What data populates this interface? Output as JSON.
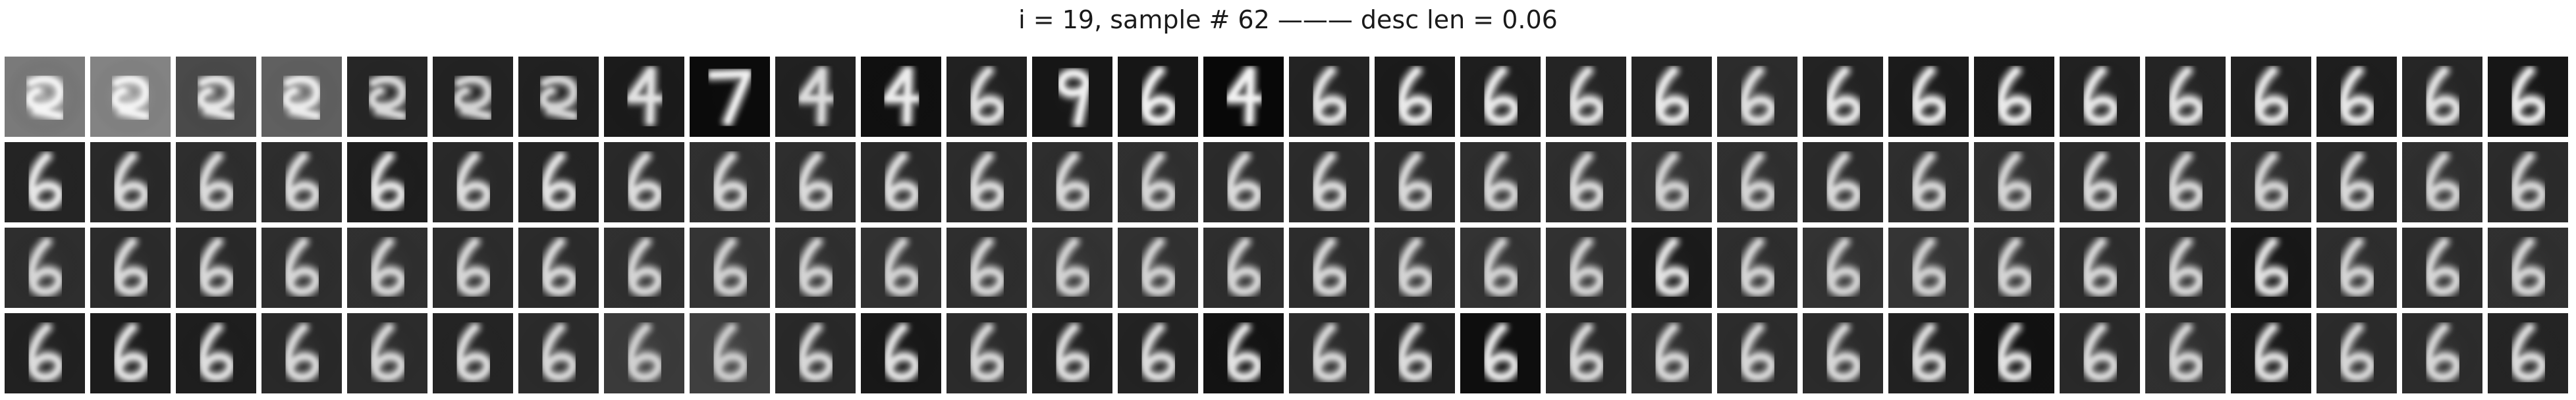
{
  "title": "i = 19, sample # 62 ——— desc len = 0.06",
  "grid": {
    "rows": 4,
    "cols": 30,
    "tiles": [
      {
        "digit": "blob",
        "bg": "#9a9a9a",
        "ink": "#f4f4f4"
      },
      {
        "digit": "blob",
        "bg": "#a6a6a6",
        "ink": "#f4f4f4"
      },
      {
        "digit": "blob",
        "bg": "#5e5e5e",
        "ink": "#e8e8e8"
      },
      {
        "digit": "blob",
        "bg": "#7a7a7a",
        "ink": "#ececec"
      },
      {
        "digit": "blob",
        "bg": "#303030",
        "ink": "#d8d8d8"
      },
      {
        "digit": "blob",
        "bg": "#2c2c2c",
        "ink": "#d4d4d4"
      },
      {
        "digit": "blob",
        "bg": "#2a2a2a",
        "ink": "#d4d4d4"
      },
      {
        "digit": "4",
        "bg": "#222222",
        "ink": "#e2e2e2"
      },
      {
        "digit": "7",
        "bg": "#0e0e0e",
        "ink": "#f0f0f0"
      },
      {
        "digit": "4",
        "bg": "#2a2a2a",
        "ink": "#dcdcdc"
      },
      {
        "digit": "4",
        "bg": "#141414",
        "ink": "#ececec"
      },
      {
        "digit": "6",
        "bg": "#2a2a2a",
        "ink": "#e0e0e0"
      },
      {
        "digit": "9",
        "bg": "#1c1c1c",
        "ink": "#f0f0f0"
      },
      {
        "digit": "6",
        "bg": "#1c1c1c",
        "ink": "#f0f0f0"
      },
      {
        "digit": "4",
        "bg": "#0a0a0a",
        "ink": "#f2f2f2"
      },
      {
        "digit": "6",
        "bg": "#2c2c2c",
        "ink": "#e2e2e2"
      },
      {
        "digit": "6",
        "bg": "#222222",
        "ink": "#eaeaea"
      },
      {
        "digit": "6",
        "bg": "#262626",
        "ink": "#e8e8e8"
      },
      {
        "digit": "6",
        "bg": "#2e2e2e",
        "ink": "#e2e2e2"
      },
      {
        "digit": "6",
        "bg": "#2e2e2e",
        "ink": "#e8e8e8"
      },
      {
        "digit": "6",
        "bg": "#383838",
        "ink": "#dedede"
      },
      {
        "digit": "6",
        "bg": "#2c2c2c",
        "ink": "#e6e6e6"
      },
      {
        "digit": "6",
        "bg": "#222222",
        "ink": "#e8e8e8"
      },
      {
        "digit": "6",
        "bg": "#202020",
        "ink": "#eaeaea"
      },
      {
        "digit": "6",
        "bg": "#2a2a2a",
        "ink": "#e6e6e6"
      },
      {
        "digit": "6",
        "bg": "#2e2e2e",
        "ink": "#e2e2e2"
      },
      {
        "digit": "6",
        "bg": "#2a2a2a",
        "ink": "#e4e4e4"
      },
      {
        "digit": "6",
        "bg": "#262626",
        "ink": "#e6e6e6"
      },
      {
        "digit": "6",
        "bg": "#303030",
        "ink": "#e2e2e2"
      },
      {
        "digit": "6",
        "bg": "#1c1c1c",
        "ink": "#eaeaea"
      },
      {
        "digit": "6",
        "bg": "#2e2e2e",
        "ink": "#e6e6e6"
      },
      {
        "digit": "6",
        "bg": "#343434",
        "ink": "#dcdcdc"
      },
      {
        "digit": "6",
        "bg": "#3a3a3a",
        "ink": "#dadada"
      },
      {
        "digit": "6",
        "bg": "#3a3a3a",
        "ink": "#dadada"
      },
      {
        "digit": "6",
        "bg": "#262626",
        "ink": "#e4e4e4"
      },
      {
        "digit": "6",
        "bg": "#343434",
        "ink": "#dcdcdc"
      },
      {
        "digit": "6",
        "bg": "#2e2e2e",
        "ink": "#e2e2e2"
      },
      {
        "digit": "6",
        "bg": "#343434",
        "ink": "#dcdcdc"
      },
      {
        "digit": "6",
        "bg": "#3c3c3c",
        "ink": "#d8d8d8"
      },
      {
        "digit": "6",
        "bg": "#3a3a3a",
        "ink": "#dadada"
      },
      {
        "digit": "6",
        "bg": "#343434",
        "ink": "#dcdcdc"
      },
      {
        "digit": "6",
        "bg": "#383838",
        "ink": "#dadada"
      },
      {
        "digit": "6",
        "bg": "#3a3a3a",
        "ink": "#d8d8d8"
      },
      {
        "digit": "6",
        "bg": "#3c3c3c",
        "ink": "#d6d6d6"
      },
      {
        "digit": "6",
        "bg": "#363636",
        "ink": "#dadada"
      },
      {
        "digit": "6",
        "bg": "#363636",
        "ink": "#dadada"
      },
      {
        "digit": "6",
        "bg": "#363636",
        "ink": "#d8d8d8"
      },
      {
        "digit": "6",
        "bg": "#3a3a3a",
        "ink": "#d6d6d6"
      },
      {
        "digit": "6",
        "bg": "#3a3a3a",
        "ink": "#d8d8d8"
      },
      {
        "digit": "6",
        "bg": "#404040",
        "ink": "#d2d2d2"
      },
      {
        "digit": "6",
        "bg": "#3c3c3c",
        "ink": "#d4d4d4"
      },
      {
        "digit": "6",
        "bg": "#363636",
        "ink": "#d8d8d8"
      },
      {
        "digit": "6",
        "bg": "#3a3a3a",
        "ink": "#d6d6d6"
      },
      {
        "digit": "6",
        "bg": "#3c3c3c",
        "ink": "#d4d4d4"
      },
      {
        "digit": "6",
        "bg": "#363636",
        "ink": "#d8d8d8"
      },
      {
        "digit": "6",
        "bg": "#383838",
        "ink": "#d6d6d6"
      },
      {
        "digit": "6",
        "bg": "#3a3a3a",
        "ink": "#d4d4d4"
      },
      {
        "digit": "6",
        "bg": "#343434",
        "ink": "#d8d8d8"
      },
      {
        "digit": "6",
        "bg": "#3c3c3c",
        "ink": "#d4d4d4"
      },
      {
        "digit": "6",
        "bg": "#363636",
        "ink": "#d6d6d6"
      },
      {
        "digit": "6",
        "bg": "#3a3a3a",
        "ink": "#d6d6d6"
      },
      {
        "digit": "6",
        "bg": "#363636",
        "ink": "#d8d8d8"
      },
      {
        "digit": "6",
        "bg": "#343434",
        "ink": "#d8d8d8"
      },
      {
        "digit": "6",
        "bg": "#3a3a3a",
        "ink": "#d6d6d6"
      },
      {
        "digit": "6",
        "bg": "#3c3c3c",
        "ink": "#d4d4d4"
      },
      {
        "digit": "6",
        "bg": "#383838",
        "ink": "#d6d6d6"
      },
      {
        "digit": "6",
        "bg": "#363636",
        "ink": "#d8d8d8"
      },
      {
        "digit": "6",
        "bg": "#3c3c3c",
        "ink": "#d4d4d4"
      },
      {
        "digit": "6",
        "bg": "#424242",
        "ink": "#d0d0d0"
      },
      {
        "digit": "6",
        "bg": "#3c3c3c",
        "ink": "#d4d4d4"
      },
      {
        "digit": "6",
        "bg": "#3e3e3e",
        "ink": "#d2d2d2"
      },
      {
        "digit": "6",
        "bg": "#3a3a3a",
        "ink": "#d4d4d4"
      },
      {
        "digit": "6",
        "bg": "#404040",
        "ink": "#d2d2d2"
      },
      {
        "digit": "6",
        "bg": "#3e3e3e",
        "ink": "#d2d2d2"
      },
      {
        "digit": "6",
        "bg": "#3a3a3a",
        "ink": "#d4d4d4"
      },
      {
        "digit": "6",
        "bg": "#383838",
        "ink": "#d6d6d6"
      },
      {
        "digit": "6",
        "bg": "#3c3c3c",
        "ink": "#d4d4d4"
      },
      {
        "digit": "6",
        "bg": "#404040",
        "ink": "#d2d2d2"
      },
      {
        "digit": "6",
        "bg": "#3e3e3e",
        "ink": "#d2d2d2"
      },
      {
        "digit": "6",
        "bg": "#222222",
        "ink": "#e2e2e2"
      },
      {
        "digit": "6",
        "bg": "#3a3a3a",
        "ink": "#d4d4d4"
      },
      {
        "digit": "6",
        "bg": "#404040",
        "ink": "#d2d2d2"
      },
      {
        "digit": "6",
        "bg": "#424242",
        "ink": "#d0d0d0"
      },
      {
        "digit": "6",
        "bg": "#3c3c3c",
        "ink": "#d4d4d4"
      },
      {
        "digit": "6",
        "bg": "#383838",
        "ink": "#d6d6d6"
      },
      {
        "digit": "6",
        "bg": "#3a3a3a",
        "ink": "#d4d4d4"
      },
      {
        "digit": "6",
        "bg": "#1e1e1e",
        "ink": "#e0e0e0"
      },
      {
        "digit": "6",
        "bg": "#3a3a3a",
        "ink": "#d4d4d4"
      },
      {
        "digit": "6",
        "bg": "#383838",
        "ink": "#d6d6d6"
      },
      {
        "digit": "6",
        "bg": "#3c3c3c",
        "ink": "#d4d4d4"
      },
      {
        "digit": "6",
        "bg": "#2a2a2a",
        "ink": "#dcdcdc"
      },
      {
        "digit": "6",
        "bg": "#242424",
        "ink": "#e0e0e0"
      },
      {
        "digit": "6",
        "bg": "#262626",
        "ink": "#dedede"
      },
      {
        "digit": "6",
        "bg": "#343434",
        "ink": "#d8d8d8"
      },
      {
        "digit": "6",
        "bg": "#383838",
        "ink": "#d6d6d6"
      },
      {
        "digit": "6",
        "bg": "#2e2e2e",
        "ink": "#dadada"
      },
      {
        "digit": "6",
        "bg": "#363636",
        "ink": "#d6d6d6"
      },
      {
        "digit": "6",
        "bg": "#4a4a4a",
        "ink": "#d0d0d0"
      },
      {
        "digit": "6",
        "bg": "#505050",
        "ink": "#cccccc"
      },
      {
        "digit": "6",
        "bg": "#343434",
        "ink": "#d8d8d8"
      },
      {
        "digit": "6",
        "bg": "#1e1e1e",
        "ink": "#e0e0e0"
      },
      {
        "digit": "6",
        "bg": "#363636",
        "ink": "#d6d6d6"
      },
      {
        "digit": "6",
        "bg": "#2a2a2a",
        "ink": "#dcdcdc"
      },
      {
        "digit": "6",
        "bg": "#2c2c2c",
        "ink": "#dcdcdc"
      },
      {
        "digit": "6",
        "bg": "#181818",
        "ink": "#e2e2e2"
      },
      {
        "digit": "6",
        "bg": "#363636",
        "ink": "#d6d6d6"
      },
      {
        "digit": "6",
        "bg": "#2a2a2a",
        "ink": "#dcdcdc"
      },
      {
        "digit": "6",
        "bg": "#121212",
        "ink": "#e4e4e4"
      },
      {
        "digit": "6",
        "bg": "#343434",
        "ink": "#d8d8d8"
      },
      {
        "digit": "6",
        "bg": "#3a3a3a",
        "ink": "#d6d6d6"
      },
      {
        "digit": "6",
        "bg": "#383838",
        "ink": "#d6d6d6"
      },
      {
        "digit": "6",
        "bg": "#363636",
        "ink": "#d6d6d6"
      },
      {
        "digit": "6",
        "bg": "#2a2a2a",
        "ink": "#dcdcdc"
      },
      {
        "digit": "6",
        "bg": "#161616",
        "ink": "#e2e2e2"
      },
      {
        "digit": "6",
        "bg": "#343434",
        "ink": "#d8d8d8"
      },
      {
        "digit": "6",
        "bg": "#3c3c3c",
        "ink": "#d4d4d4"
      },
      {
        "digit": "6",
        "bg": "#202020",
        "ink": "#dedede"
      },
      {
        "digit": "6",
        "bg": "#363636",
        "ink": "#d6d6d6"
      },
      {
        "digit": "6",
        "bg": "#383838",
        "ink": "#d6d6d6"
      },
      {
        "digit": "6",
        "bg": "#2e2e2e",
        "ink": "#dadada"
      }
    ]
  }
}
